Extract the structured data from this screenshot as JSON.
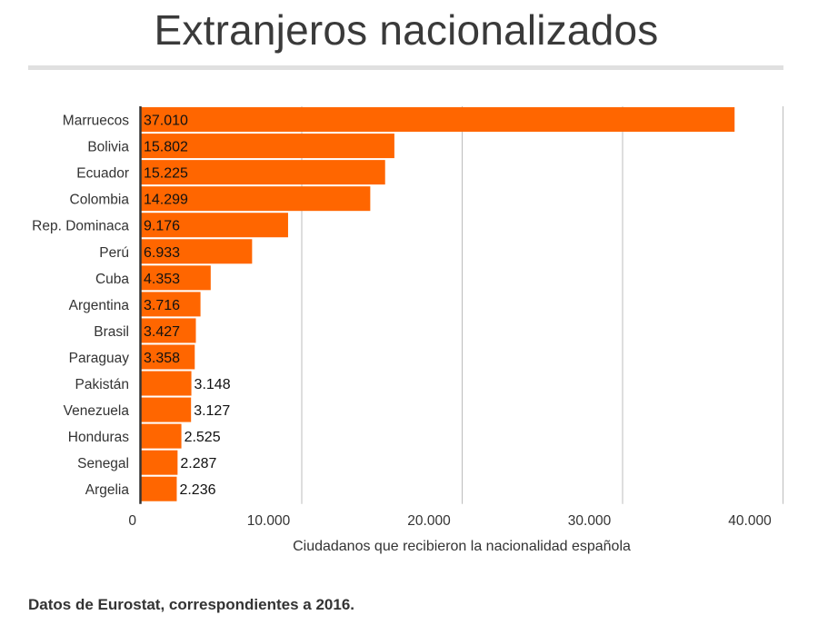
{
  "title": "Extranjeros nacionalizados",
  "footnote": "Datos de Eurostat, correspondientes a 2016.",
  "colors": {
    "bar": "#ff6600",
    "grid": "#bdbdbd",
    "axis": "#333333",
    "text": "#333333"
  },
  "chart_data": {
    "type": "bar",
    "orientation": "horizontal",
    "categories": [
      "Marruecos",
      "Bolivia",
      "Ecuador",
      "Colombia",
      "Rep. Dominaca",
      "Perú",
      "Cuba",
      "Argentina",
      "Brasil",
      "Paraguay",
      "Pakistán",
      "Venezuela",
      "Honduras",
      "Senegal",
      "Argelia"
    ],
    "values": [
      37010,
      15802,
      15225,
      14299,
      9176,
      6933,
      4353,
      3716,
      3427,
      3358,
      3148,
      3127,
      2525,
      2287,
      2236
    ],
    "value_labels": [
      "37.010",
      "15.802",
      "15.225",
      "14.299",
      "9.176",
      "6.933",
      "4.353",
      "3.716",
      "3.427",
      "3.358",
      "3.148",
      "3.127",
      "2.525",
      "2.287",
      "2.236"
    ],
    "xlabel": "Ciudadanos que recibieron la nacionalidad española",
    "ylabel": "",
    "xlim": [
      0,
      40000
    ],
    "x_ticks": [
      0,
      10000,
      20000,
      30000,
      40000
    ],
    "x_tick_labels": [
      "0",
      "10.000",
      "20.000",
      "30.000",
      "40.000"
    ],
    "grid": true,
    "legend": "none"
  }
}
